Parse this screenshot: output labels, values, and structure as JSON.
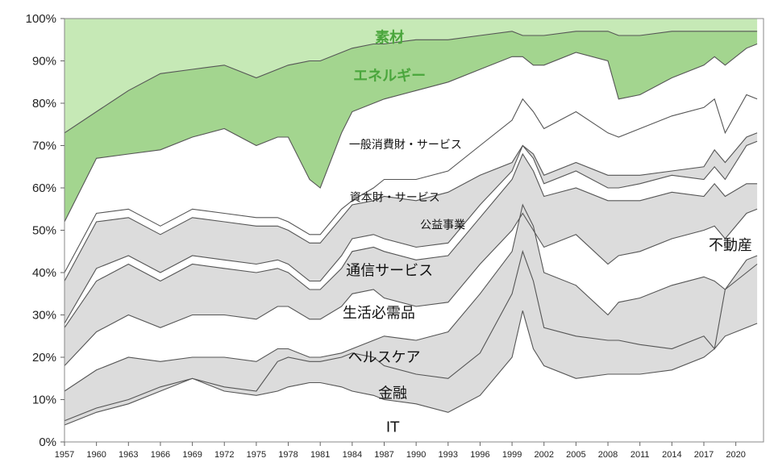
{
  "chart_data": {
    "type": "area",
    "stacking": "cumulative share (%)",
    "x": [
      1957,
      1960,
      1963,
      1966,
      1969,
      1972,
      1975,
      1977,
      1978,
      1980,
      1981,
      1983,
      1984,
      1986,
      1987,
      1990,
      1993,
      1996,
      1999,
      2000,
      2001,
      2002,
      2005,
      2008,
      2009,
      2011,
      2014,
      2017,
      2018,
      2019,
      2021,
      2022
    ],
    "x_tick_labels": [
      "1957",
      "1960",
      "1963",
      "1966",
      "1969",
      "1972",
      "1975",
      "1978",
      "1981",
      "1984",
      "1987",
      "1990",
      "1993",
      "1996",
      "1999",
      "2002",
      "2005",
      "2008",
      "2011",
      "2014",
      "2017",
      "2020"
    ],
    "xlim": [
      1957,
      2022.6
    ],
    "ylim": [
      0,
      100
    ],
    "y_tick_labels": [
      "0%",
      "10%",
      "20%",
      "30%",
      "40%",
      "50%",
      "60%",
      "70%",
      "80%",
      "90%",
      "100%"
    ],
    "grid": false,
    "legend": "none (labels placed inside bands)",
    "boundaries": [
      {
        "name": "IT",
        "values": [
          4,
          7,
          9,
          12,
          15,
          12,
          11,
          12,
          13,
          14,
          14,
          13,
          12,
          11,
          10,
          9,
          7,
          11,
          20,
          31,
          22,
          18,
          15,
          16,
          16,
          16,
          17,
          20,
          22,
          25,
          27,
          28
        ]
      },
      {
        "name": "金融",
        "values": [
          5,
          8,
          10,
          13,
          15,
          13,
          12,
          19,
          20,
          19,
          19,
          20,
          21,
          20,
          18,
          16,
          15,
          21,
          35,
          45,
          38,
          27,
          25,
          24,
          24,
          23,
          22,
          25,
          22,
          36,
          40,
          42
        ]
      },
      {
        "name": "ヘルスケア",
        "values": [
          12,
          17,
          20,
          19,
          20,
          20,
          19,
          22,
          22,
          20,
          20,
          21,
          22,
          24,
          25,
          24,
          26,
          35,
          45,
          56,
          51,
          40,
          37,
          30,
          33,
          34,
          37,
          39,
          38,
          36,
          43,
          44
        ]
      },
      {
        "name": "生活必需品",
        "values": [
          18,
          26,
          30,
          27,
          30,
          30,
          29,
          32,
          32,
          29,
          29,
          32,
          35,
          36,
          34,
          32,
          33,
          42,
          50,
          54,
          50,
          46,
          49,
          42,
          44,
          45,
          48,
          50,
          51,
          48,
          54,
          55
        ]
      },
      {
        "name": "通信サービス",
        "values": [
          27,
          38,
          42,
          38,
          42,
          41,
          40,
          41,
          40,
          36,
          36,
          41,
          45,
          46,
          45,
          43,
          44,
          53,
          62,
          68,
          64,
          58,
          60,
          57,
          57,
          57,
          59,
          58,
          61,
          58,
          61,
          61
        ]
      },
      {
        "name": "公益事業",
        "values": [
          28,
          41,
          44,
          40,
          44,
          43,
          42,
          43,
          42,
          38,
          38,
          44,
          48,
          49,
          48,
          46,
          47,
          56,
          64,
          70,
          67,
          61,
          64,
          60,
          60,
          61,
          63,
          62,
          65,
          62,
          70,
          71
        ]
      },
      {
        "name": "資本財・サービス",
        "values": [
          38,
          52,
          53,
          49,
          53,
          52,
          51,
          51,
          50,
          47,
          47,
          53,
          56,
          57,
          58,
          57,
          59,
          63,
          66,
          70,
          68,
          63,
          66,
          63,
          63,
          63,
          64,
          65,
          69,
          66,
          72,
          73
        ]
      },
      {
        "name": "一般消費財・サービス",
        "values": [
          40,
          54,
          55,
          51,
          55,
          54,
          53,
          53,
          52,
          49,
          49,
          55,
          57,
          60,
          62,
          62,
          64,
          70,
          76,
          81,
          78,
          74,
          78,
          73,
          72,
          74,
          77,
          79,
          81,
          73,
          82,
          81
        ]
      },
      {
        "name": "エネルギー",
        "values": [
          52,
          67,
          68,
          69,
          72,
          74,
          70,
          72,
          72,
          62,
          60,
          73,
          78,
          80,
          81,
          83,
          85,
          88,
          91,
          91,
          89,
          89,
          92,
          90,
          81,
          82,
          86,
          89,
          91,
          89,
          93,
          94
        ]
      },
      {
        "name": "素材",
        "values": [
          73,
          78,
          83,
          87,
          88,
          89,
          86,
          88,
          89,
          90,
          90,
          92,
          93,
          94,
          94,
          95,
          95,
          96,
          97,
          96,
          96,
          96,
          97,
          97,
          96,
          96,
          97,
          97,
          97,
          97,
          97,
          97
        ]
      }
    ],
    "series": [
      {
        "name": "IT"
      },
      {
        "name": "金融"
      },
      {
        "name": "ヘルスケア"
      },
      {
        "name": "生活必需品"
      },
      {
        "name": "通信サービス"
      },
      {
        "name": "公益事業"
      },
      {
        "name": "資本財・サービス"
      },
      {
        "name": "一般消費財・サービス"
      },
      {
        "name": "エネルギー"
      },
      {
        "name": "素材"
      },
      {
        "name": "不動産"
      }
    ],
    "colors": {
      "gray_band": "#dcdcdc",
      "white_band": "#ffffff",
      "energy": "#a3d58f",
      "materials": "#c6e9b6",
      "line": "#555555",
      "green_label": "#4aa63c"
    },
    "labels": [
      {
        "text": "素材",
        "x": 1987.5,
        "y": 95.5,
        "green": true
      },
      {
        "text": "エネルギー",
        "x": 1987.5,
        "y": 86.5,
        "green": true
      },
      {
        "text": "一般消費財・サービス",
        "x": 1989.0,
        "y": 70.5,
        "small": true
      },
      {
        "text": "資本財・サービス",
        "x": 1988.0,
        "y": 58.0,
        "small": true
      },
      {
        "text": "公益事業",
        "x": 1992.5,
        "y": 51.5,
        "small": true
      },
      {
        "text": "不動産",
        "x": 2019.5,
        "y": 46.5
      },
      {
        "text": "通信サービス",
        "x": 1987.5,
        "y": 40.5
      },
      {
        "text": "生活必需品",
        "x": 1986.5,
        "y": 30.5
      },
      {
        "text": "ヘルスケア",
        "x": 1987.0,
        "y": 20.0
      },
      {
        "text": "金融",
        "x": 1987.8,
        "y": 11.5
      },
      {
        "text": "IT",
        "x": 1987.8,
        "y": 3.5
      }
    ]
  }
}
